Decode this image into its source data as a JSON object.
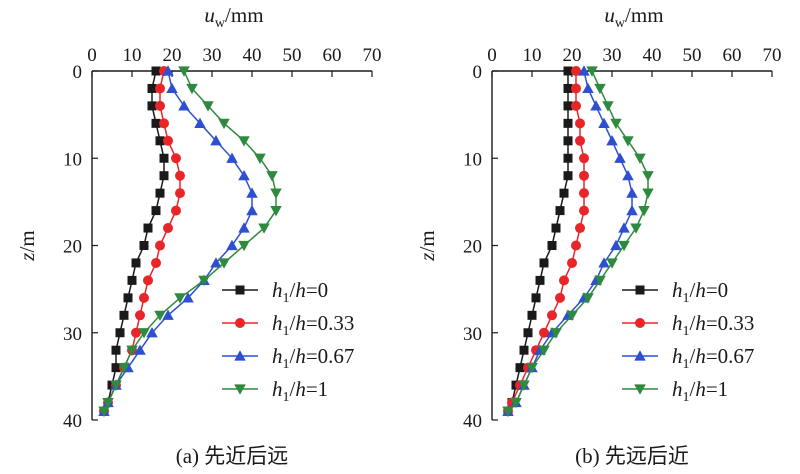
{
  "colors": {
    "black": "#1a1a1a",
    "red": "#e8262a",
    "blue": "#2e4fd0",
    "green": "#2e8a3e"
  },
  "chart_data": [
    {
      "type": "line",
      "caption": "(a) 先近后远",
      "xlabel_main": "u",
      "xlabel_sub": "w",
      "xlabel_unit": "/mm",
      "ylabel": "z/m",
      "xlim": [
        0,
        70
      ],
      "ylim": [
        0,
        40
      ],
      "y_inverted": true,
      "x_axis_position": "top",
      "xticks": [
        0,
        10,
        20,
        30,
        40,
        50,
        60,
        70
      ],
      "yticks": [
        0,
        10,
        20,
        30,
        40
      ],
      "grid": false,
      "legend_position": "right-middle",
      "series": [
        {
          "name": "h1/h=0",
          "legend_parts": [
            "h",
            "1",
            "/",
            "h",
            "=0"
          ],
          "marker": "square",
          "color": "black",
          "points": [
            [
              16,
              0
            ],
            [
              15,
              2
            ],
            [
              15,
              4
            ],
            [
              16,
              6
            ],
            [
              17,
              8
            ],
            [
              18,
              10
            ],
            [
              18,
              12
            ],
            [
              17,
              14
            ],
            [
              16,
              16
            ],
            [
              14,
              18
            ],
            [
              13,
              20
            ],
            [
              11,
              22
            ],
            [
              10,
              24
            ],
            [
              9,
              26
            ],
            [
              8,
              28
            ],
            [
              7,
              30
            ],
            [
              6,
              32
            ],
            [
              6,
              34
            ],
            [
              5,
              36
            ],
            [
              4,
              38
            ],
            [
              3,
              39
            ]
          ]
        },
        {
          "name": "h1/h=0.33",
          "legend_parts": [
            "h",
            "1",
            "/",
            "h",
            "=0.33"
          ],
          "marker": "circle",
          "color": "red",
          "points": [
            [
              18,
              0
            ],
            [
              17,
              2
            ],
            [
              17,
              4
            ],
            [
              18,
              6
            ],
            [
              19,
              8
            ],
            [
              21,
              10
            ],
            [
              22,
              12
            ],
            [
              22,
              14
            ],
            [
              21,
              16
            ],
            [
              19,
              18
            ],
            [
              17,
              20
            ],
            [
              16,
              22
            ],
            [
              14,
              24
            ],
            [
              13,
              26
            ],
            [
              12,
              28
            ],
            [
              11,
              30
            ],
            [
              10,
              32
            ],
            [
              8,
              34
            ],
            [
              6,
              36
            ],
            [
              4,
              38
            ],
            [
              3,
              39
            ]
          ]
        },
        {
          "name": "h1/h=0.67",
          "legend_parts": [
            "h",
            "1",
            "/",
            "h",
            "=0.67"
          ],
          "marker": "triangle-up",
          "color": "blue",
          "points": [
            [
              19,
              0
            ],
            [
              20,
              2
            ],
            [
              23,
              4
            ],
            [
              27,
              6
            ],
            [
              31,
              8
            ],
            [
              35,
              10
            ],
            [
              38,
              12
            ],
            [
              40,
              14
            ],
            [
              40,
              16
            ],
            [
              38,
              18
            ],
            [
              35,
              20
            ],
            [
              31,
              22
            ],
            [
              28,
              24
            ],
            [
              24,
              26
            ],
            [
              19,
              28
            ],
            [
              15,
              30
            ],
            [
              12,
              32
            ],
            [
              9,
              34
            ],
            [
              6,
              36
            ],
            [
              4,
              38
            ],
            [
              3,
              39
            ]
          ]
        },
        {
          "name": "h1/h=1",
          "legend_parts": [
            "h",
            "1",
            "/",
            "h",
            "=1"
          ],
          "marker": "triangle-down",
          "color": "green",
          "points": [
            [
              23,
              0
            ],
            [
              25,
              2
            ],
            [
              29,
              4
            ],
            [
              33,
              6
            ],
            [
              38,
              8
            ],
            [
              42,
              10
            ],
            [
              45,
              12
            ],
            [
              46,
              14
            ],
            [
              46,
              16
            ],
            [
              43,
              18
            ],
            [
              38,
              20
            ],
            [
              33,
              22
            ],
            [
              28,
              24
            ],
            [
              22,
              26
            ],
            [
              17,
              28
            ],
            [
              13,
              30
            ],
            [
              10,
              32
            ],
            [
              8,
              34
            ],
            [
              6,
              36
            ],
            [
              4,
              38
            ],
            [
              3,
              39
            ]
          ]
        }
      ]
    },
    {
      "type": "line",
      "caption": "(b) 先远后近",
      "xlabel_main": "u",
      "xlabel_sub": "w",
      "xlabel_unit": "/mm",
      "ylabel": "z/m",
      "xlim": [
        0,
        70
      ],
      "ylim": [
        0,
        40
      ],
      "y_inverted": true,
      "x_axis_position": "top",
      "xticks": [
        0,
        10,
        20,
        30,
        40,
        50,
        60,
        70
      ],
      "yticks": [
        0,
        10,
        20,
        30,
        40
      ],
      "grid": false,
      "legend_position": "right-middle",
      "series": [
        {
          "name": "h1/h=0",
          "legend_parts": [
            "h",
            "1",
            "/",
            "h",
            "=0"
          ],
          "marker": "square",
          "color": "black",
          "points": [
            [
              19,
              0
            ],
            [
              19,
              2
            ],
            [
              19,
              4
            ],
            [
              19,
              6
            ],
            [
              19,
              8
            ],
            [
              19,
              10
            ],
            [
              19,
              12
            ],
            [
              18,
              14
            ],
            [
              17,
              16
            ],
            [
              16,
              18
            ],
            [
              15,
              20
            ],
            [
              13,
              22
            ],
            [
              12,
              24
            ],
            [
              11,
              26
            ],
            [
              10,
              28
            ],
            [
              9,
              30
            ],
            [
              8,
              32
            ],
            [
              7,
              34
            ],
            [
              6,
              36
            ],
            [
              5,
              38
            ],
            [
              4,
              39
            ]
          ]
        },
        {
          "name": "h1/h=0.33",
          "legend_parts": [
            "h",
            "1",
            "/",
            "h",
            "=0.33"
          ],
          "marker": "circle",
          "color": "red",
          "points": [
            [
              21,
              0
            ],
            [
              21,
              2
            ],
            [
              21,
              4
            ],
            [
              22,
              6
            ],
            [
              22,
              8
            ],
            [
              23,
              10
            ],
            [
              23,
              12
            ],
            [
              23,
              14
            ],
            [
              23,
              16
            ],
            [
              22,
              18
            ],
            [
              21,
              20
            ],
            [
              20,
              22
            ],
            [
              18,
              24
            ],
            [
              17,
              26
            ],
            [
              15,
              28
            ],
            [
              13,
              30
            ],
            [
              11,
              32
            ],
            [
              9,
              34
            ],
            [
              7,
              36
            ],
            [
              5,
              38
            ],
            [
              4,
              39
            ]
          ]
        },
        {
          "name": "h1/h=0.67",
          "legend_parts": [
            "h",
            "1",
            "/",
            "h",
            "=0.67"
          ],
          "marker": "triangle-up",
          "color": "blue",
          "points": [
            [
              23,
              0
            ],
            [
              24,
              2
            ],
            [
              26,
              4
            ],
            [
              28,
              6
            ],
            [
              30,
              8
            ],
            [
              32,
              10
            ],
            [
              34,
              12
            ],
            [
              35,
              14
            ],
            [
              35,
              16
            ],
            [
              33,
              18
            ],
            [
              31,
              20
            ],
            [
              28,
              22
            ],
            [
              26,
              24
            ],
            [
              23,
              26
            ],
            [
              19,
              28
            ],
            [
              15,
              30
            ],
            [
              12,
              32
            ],
            [
              10,
              34
            ],
            [
              8,
              36
            ],
            [
              6,
              38
            ],
            [
              4,
              39
            ]
          ]
        },
        {
          "name": "h1/h=1",
          "legend_parts": [
            "h",
            "1",
            "/",
            "h",
            "=1"
          ],
          "marker": "triangle-down",
          "color": "green",
          "points": [
            [
              25,
              0
            ],
            [
              27,
              2
            ],
            [
              29,
              4
            ],
            [
              31,
              6
            ],
            [
              34,
              8
            ],
            [
              37,
              10
            ],
            [
              39,
              12
            ],
            [
              39,
              14
            ],
            [
              38,
              16
            ],
            [
              36,
              18
            ],
            [
              33,
              20
            ],
            [
              30,
              22
            ],
            [
              27,
              24
            ],
            [
              24,
              26
            ],
            [
              20,
              28
            ],
            [
              16,
              30
            ],
            [
              13,
              32
            ],
            [
              10,
              34
            ],
            [
              8,
              36
            ],
            [
              6,
              38
            ],
            [
              4,
              39
            ]
          ]
        }
      ]
    }
  ]
}
